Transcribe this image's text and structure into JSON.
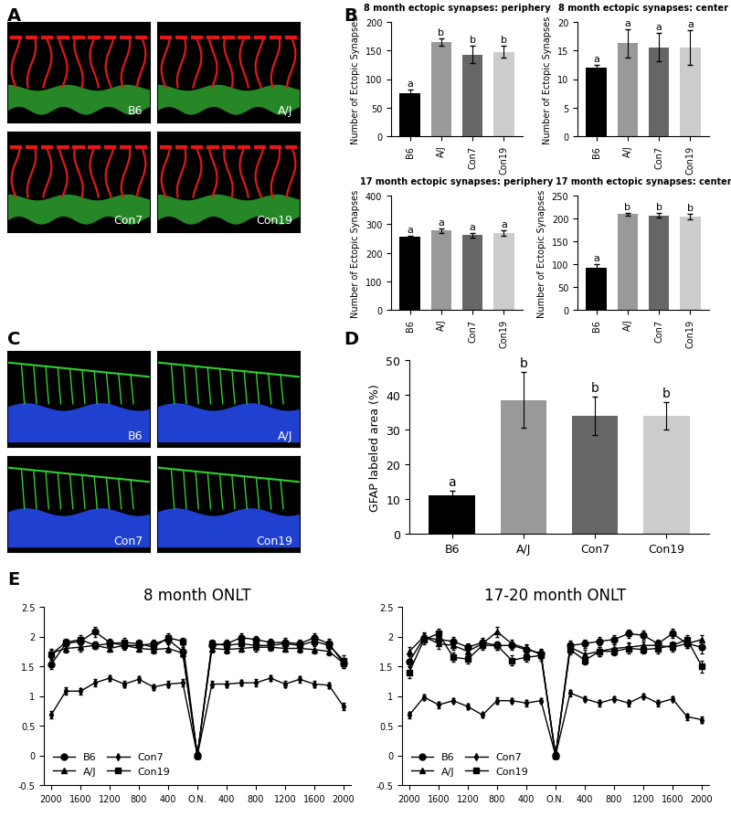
{
  "panel_labels": [
    "A",
    "B",
    "C",
    "D",
    "E"
  ],
  "images_A": [
    "B6",
    "A/J",
    "Con7",
    "Con19"
  ],
  "images_C": [
    "B6",
    "A/J",
    "Con7",
    "Con19"
  ],
  "chart_data": [
    {
      "type": "bar",
      "title": "8 month ectopic synapses: periphery",
      "y_label": "Number of Ectopic Synapses",
      "categories": [
        "B6",
        "A/J",
        "Con7",
        "Con19"
      ],
      "values": [
        75,
        165,
        143,
        148
      ],
      "errors": [
        6,
        7,
        15,
        10
      ],
      "annotations": [
        "a",
        "b",
        "b",
        "b"
      ],
      "colors": [
        "#000000",
        "#999999",
        "#666666",
        "#cccccc"
      ],
      "ylim": [
        0,
        200
      ],
      "yticks": [
        0,
        50,
        100,
        150,
        200
      ]
    },
    {
      "type": "bar",
      "title": "8 month ectopic synapses: center",
      "y_label": "Number of Ectopic Synapses",
      "categories": [
        "B6",
        "A/J",
        "Con7",
        "Con19"
      ],
      "values": [
        12,
        16.3,
        15.6,
        15.5
      ],
      "errors": [
        0.5,
        2.5,
        2.5,
        3
      ],
      "annotations": [
        "a",
        "a",
        "a",
        "a"
      ],
      "colors": [
        "#000000",
        "#999999",
        "#666666",
        "#cccccc"
      ],
      "ylim": [
        0,
        20
      ],
      "yticks": [
        0,
        5,
        10,
        15,
        20
      ]
    },
    {
      "type": "bar",
      "title": "17 month ectopic synapses: periphery",
      "y_label": "Number of Ectopic Synapses",
      "categories": [
        "B6",
        "A/J",
        "Con7",
        "Con19"
      ],
      "values": [
        255,
        278,
        262,
        268
      ],
      "errors": [
        5,
        8,
        8,
        10
      ],
      "annotations": [
        "a",
        "a",
        "a",
        "a"
      ],
      "colors": [
        "#000000",
        "#999999",
        "#666666",
        "#cccccc"
      ],
      "ylim": [
        0,
        400
      ],
      "yticks": [
        0,
        100,
        200,
        300,
        400
      ]
    },
    {
      "type": "bar",
      "title": "17 month ectopic synapses: center",
      "y_label": "Number of Ectopic Synapses",
      "categories": [
        "B6",
        "A/J",
        "Con7",
        "Con19"
      ],
      "values": [
        93,
        210,
        207,
        205
      ],
      "errors": [
        8,
        3,
        5,
        6
      ],
      "annotations": [
        "a",
        "b",
        "b",
        "b"
      ],
      "colors": [
        "#000000",
        "#999999",
        "#666666",
        "#cccccc"
      ],
      "ylim": [
        0,
        250
      ],
      "yticks": [
        0,
        50,
        100,
        150,
        200,
        250
      ]
    },
    {
      "type": "bar",
      "y_label": "GFAP labeled area (%)",
      "categories": [
        "B6",
        "A/J",
        "Con7",
        "Con19"
      ],
      "values": [
        11,
        38.5,
        34,
        34
      ],
      "errors": [
        1.5,
        8,
        5.5,
        4
      ],
      "annotations": [
        "a",
        "b",
        "b",
        "b"
      ],
      "colors": [
        "#000000",
        "#999999",
        "#666666",
        "#cccccc"
      ],
      "ylim": [
        0,
        50
      ],
      "yticks": [
        0,
        10,
        20,
        30,
        40,
        50
      ]
    },
    {
      "type": "line",
      "title": "8 month ONLT",
      "categories": [
        "2000",
        null,
        "1600",
        null,
        "1200",
        null,
        "800",
        null,
        "400",
        null,
        "O.N.",
        null,
        "400",
        null,
        "800",
        null,
        "1200",
        null,
        "1600",
        null,
        "2000"
      ],
      "ylim": [
        -0.5,
        2.5
      ],
      "yticks": [
        -0.5,
        0,
        0.5,
        1,
        1.5,
        2,
        2.5
      ],
      "legend": "lower left",
      "series": [
        {
          "name": "B6",
          "color": "#000000",
          "marker": "circle",
          "values": [
            1.53,
            1.88,
            1.92,
            2.08,
            1.9,
            1.85,
            1.85,
            1.88,
            1.95,
            1.75,
            0,
            1.85,
            1.88,
            1.98,
            1.95,
            1.9,
            1.9,
            1.88,
            1.98,
            1.88,
            1.55
          ],
          "errors": [
            0.08,
            0.07,
            0.06,
            0.08,
            0.06,
            0.06,
            0.07,
            0.06,
            0.07,
            0.08,
            0.05,
            0.07,
            0.06,
            0.07,
            0.06,
            0.06,
            0.07,
            0.06,
            0.07,
            0.08,
            0.08
          ]
        },
        {
          "name": "A/J",
          "color": "#000000",
          "marker": "triangle",
          "values": [
            1.72,
            1.8,
            1.82,
            1.85,
            1.8,
            1.85,
            1.8,
            1.78,
            1.8,
            1.72,
            0,
            1.8,
            1.78,
            1.8,
            1.82,
            1.82,
            1.8,
            1.8,
            1.78,
            1.75,
            1.55
          ],
          "errors": [
            0.08,
            0.07,
            0.07,
            0.06,
            0.06,
            0.07,
            0.06,
            0.06,
            0.07,
            0.07,
            0.05,
            0.07,
            0.06,
            0.06,
            0.07,
            0.06,
            0.06,
            0.07,
            0.06,
            0.07,
            0.08
          ]
        },
        {
          "name": "Con7",
          "color": "#000000",
          "marker": "diamond",
          "values": [
            0.68,
            1.08,
            1.08,
            1.22,
            1.3,
            1.2,
            1.28,
            1.15,
            1.2,
            1.22,
            0,
            1.2,
            1.2,
            1.22,
            1.22,
            1.3,
            1.2,
            1.28,
            1.2,
            1.18,
            0.82
          ],
          "errors": [
            0.06,
            0.06,
            0.05,
            0.06,
            0.05,
            0.06,
            0.05,
            0.05,
            0.06,
            0.06,
            0.05,
            0.06,
            0.05,
            0.05,
            0.06,
            0.05,
            0.06,
            0.05,
            0.06,
            0.05,
            0.06
          ]
        },
        {
          "name": "Con19",
          "color": "#000000",
          "marker": "square",
          "values": [
            1.7,
            1.9,
            1.95,
            1.85,
            1.88,
            1.9,
            1.88,
            1.82,
            1.98,
            1.92,
            0,
            1.88,
            1.85,
            1.88,
            1.85,
            1.85,
            1.88,
            1.85,
            1.92,
            1.85,
            1.6
          ],
          "errors": [
            0.08,
            0.06,
            0.07,
            0.06,
            0.06,
            0.07,
            0.06,
            0.06,
            0.07,
            0.06,
            0.05,
            0.06,
            0.06,
            0.07,
            0.06,
            0.06,
            0.06,
            0.07,
            0.06,
            0.06,
            0.08
          ]
        }
      ]
    },
    {
      "type": "line",
      "title": "17-20 month ONLT",
      "categories": [
        "2000",
        null,
        "1600",
        null,
        "1200",
        null,
        "800",
        null,
        "400",
        null,
        "O.N.",
        null,
        "400",
        null,
        "800",
        null,
        "1200",
        null,
        "1600",
        null,
        "2000"
      ],
      "ylim": [
        -0.5,
        2.5
      ],
      "yticks": [
        -0.5,
        0,
        0.5,
        1,
        1.5,
        2,
        2.5
      ],
      "legend": "lower left",
      "series": [
        {
          "name": "B6",
          "color": "#000000",
          "marker": "circle",
          "values": [
            1.58,
            1.98,
            1.95,
            1.92,
            1.82,
            1.9,
            1.85,
            1.85,
            1.78,
            1.72,
            0,
            1.85,
            1.88,
            1.92,
            1.95,
            2.05,
            2.02,
            1.88,
            2.05,
            1.88,
            1.82
          ],
          "errors": [
            0.1,
            0.07,
            0.07,
            0.08,
            0.07,
            0.08,
            0.07,
            0.07,
            0.08,
            0.07,
            0.05,
            0.08,
            0.07,
            0.07,
            0.08,
            0.07,
            0.08,
            0.07,
            0.08,
            0.07,
            0.1
          ]
        },
        {
          "name": "A/J",
          "color": "#000000",
          "marker": "triangle",
          "values": [
            1.75,
            2.0,
            1.88,
            1.85,
            1.75,
            1.88,
            2.08,
            1.88,
            1.8,
            1.7,
            0,
            1.82,
            1.7,
            1.75,
            1.8,
            1.82,
            1.85,
            1.85,
            1.82,
            1.88,
            1.95
          ],
          "errors": [
            0.08,
            0.07,
            0.08,
            0.07,
            0.08,
            0.07,
            0.08,
            0.07,
            0.07,
            0.08,
            0.05,
            0.08,
            0.07,
            0.08,
            0.07,
            0.08,
            0.07,
            0.07,
            0.08,
            0.07,
            0.08
          ]
        },
        {
          "name": "Con7",
          "color": "#000000",
          "marker": "diamond",
          "values": [
            0.68,
            0.98,
            0.85,
            0.92,
            0.82,
            0.68,
            0.92,
            0.92,
            0.88,
            0.92,
            0,
            1.05,
            0.95,
            0.88,
            0.95,
            0.88,
            1.0,
            0.88,
            0.95,
            0.65,
            0.6
          ],
          "errors": [
            0.05,
            0.05,
            0.05,
            0.04,
            0.05,
            0.04,
            0.05,
            0.04,
            0.05,
            0.04,
            0.05,
            0.05,
            0.04,
            0.05,
            0.04,
            0.05,
            0.04,
            0.05,
            0.04,
            0.05,
            0.05
          ]
        },
        {
          "name": "Con19",
          "color": "#000000",
          "marker": "square",
          "values": [
            1.4,
            1.95,
            2.05,
            1.65,
            1.62,
            1.85,
            1.85,
            1.6,
            1.65,
            1.68,
            0,
            1.78,
            1.6,
            1.75,
            1.75,
            1.8,
            1.78,
            1.8,
            1.85,
            1.95,
            1.5
          ],
          "errors": [
            0.1,
            0.08,
            0.08,
            0.08,
            0.07,
            0.08,
            0.07,
            0.08,
            0.07,
            0.08,
            0.05,
            0.08,
            0.07,
            0.08,
            0.07,
            0.08,
            0.07,
            0.08,
            0.07,
            0.08,
            0.1
          ]
        }
      ]
    }
  ]
}
